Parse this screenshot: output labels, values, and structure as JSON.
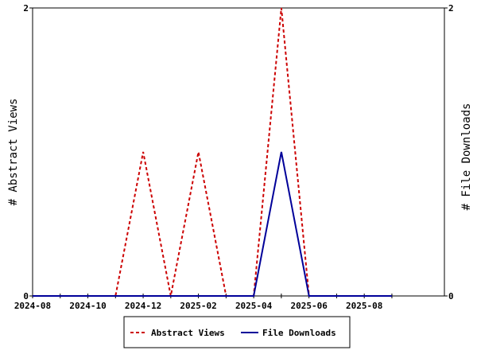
{
  "chart_data": {
    "type": "line",
    "x": [
      "2024-08",
      "2024-09",
      "2024-10",
      "2024-11",
      "2024-12",
      "2025-01",
      "2025-02",
      "2025-03",
      "2025-04",
      "2025-05",
      "2025-06",
      "2025-07",
      "2025-08",
      "2025-09"
    ],
    "x_tick_labels": [
      "2024-08",
      "2024-10",
      "2024-12",
      "2025-02",
      "2025-04",
      "2025-06",
      "2025-08"
    ],
    "series": [
      {
        "name": "Abstract Views",
        "axis": "left",
        "color": "#cc0000",
        "dash": "dashed",
        "values": [
          0,
          0,
          0,
          0,
          1,
          0,
          1,
          0,
          0,
          2,
          0,
          0,
          0,
          0
        ]
      },
      {
        "name": "File Downloads",
        "axis": "right",
        "color": "#000099",
        "dash": "solid",
        "values": [
          0,
          0,
          0,
          0,
          0,
          0,
          0,
          0,
          0,
          1,
          0,
          0,
          0,
          0
        ]
      }
    ],
    "ylabel_left": "# Abstract Views",
    "ylabel_right": "# File Downloads",
    "ylim_left": [
      0,
      2
    ],
    "ylim_right": [
      0,
      2
    ],
    "y_ticks_left": [
      "0",
      "2"
    ],
    "y_ticks_right": [
      "0",
      "2"
    ],
    "grid": false,
    "legend_position": "bottom-center"
  }
}
